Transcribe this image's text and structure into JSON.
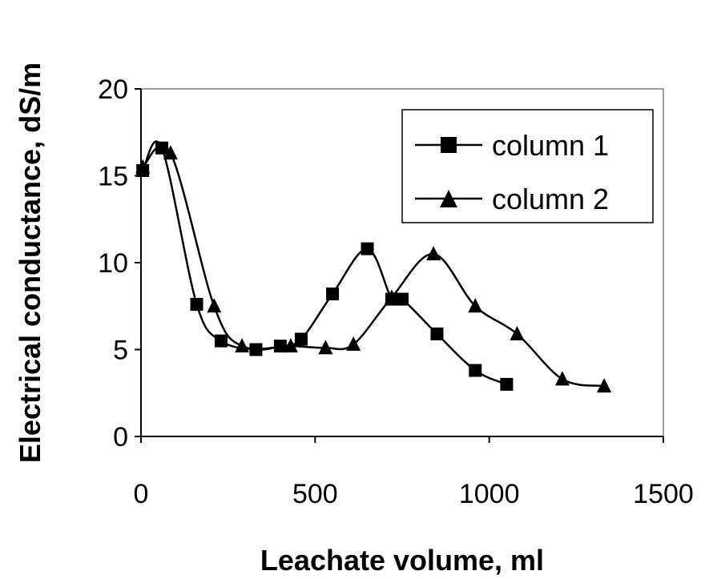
{
  "chart_data": {
    "type": "line",
    "title": "",
    "xlabel": "Leachate volume, ml",
    "ylabel": "Electrical conductance, dS/m",
    "xlim": [
      0,
      1500
    ],
    "ylim": [
      0,
      20
    ],
    "xticks": [
      0,
      500,
      1000,
      1500
    ],
    "yticks": [
      0,
      5,
      10,
      15,
      20
    ],
    "grid": false,
    "legend_position": "top-right",
    "series": [
      {
        "name": "column 1",
        "marker": "square",
        "color": "#000000",
        "points": [
          [
            5,
            15.3
          ],
          [
            60,
            16.6
          ],
          [
            160,
            7.6
          ],
          [
            230,
            5.5
          ],
          [
            330,
            5.0
          ],
          [
            400,
            5.2
          ],
          [
            460,
            5.6
          ],
          [
            550,
            8.2
          ],
          [
            650,
            10.8
          ],
          [
            720,
            7.9
          ],
          [
            750,
            7.9
          ],
          [
            850,
            5.9
          ],
          [
            960,
            3.8
          ],
          [
            1050,
            3.0
          ]
        ]
      },
      {
        "name": "column 2",
        "marker": "triangle",
        "color": "#000000",
        "points": [
          [
            5,
            15.5
          ],
          [
            85,
            16.3
          ],
          [
            210,
            7.5
          ],
          [
            290,
            5.2
          ],
          [
            430,
            5.2
          ],
          [
            530,
            5.1
          ],
          [
            610,
            5.3
          ],
          [
            720,
            8.0
          ],
          [
            840,
            10.5
          ],
          [
            960,
            7.5
          ],
          [
            1080,
            5.9
          ],
          [
            1210,
            3.3
          ],
          [
            1330,
            2.9
          ]
        ]
      }
    ]
  }
}
